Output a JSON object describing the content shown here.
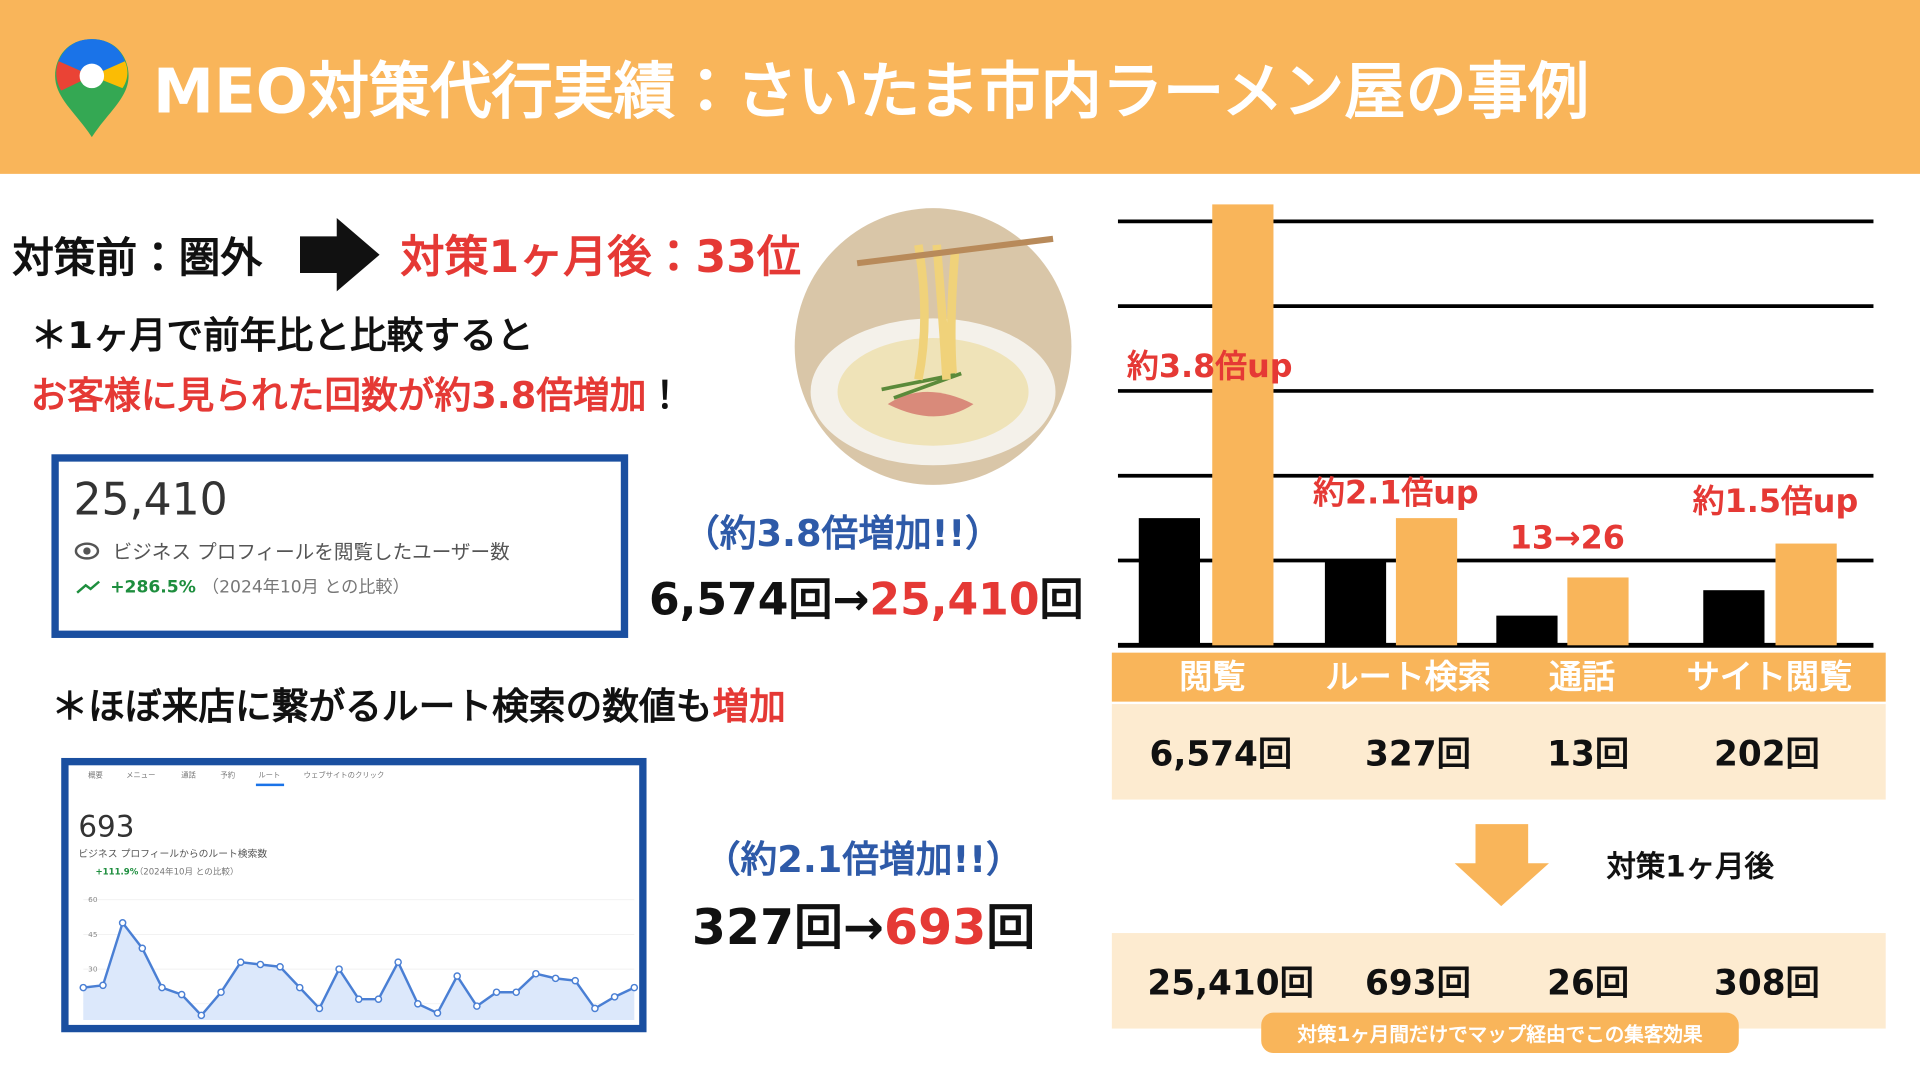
{
  "header": {
    "title": "MEO対策代行実績：さいたま市内ラーメン屋の事例"
  },
  "rank": {
    "before": "対策前：圏外",
    "after": "対策1ヶ月後：33位"
  },
  "lead": "＊1ヶ月で前年比と比較すると",
  "lead_highlight": [
    "お客様に見られた回数が約3.8倍増加",
    "！"
  ],
  "card1": {
    "value": "25,410",
    "label": "ビジネス プロフィールを閲覧したユーザー数",
    "change": "+286.5%",
    "compare": "（2024年10月 との比較）"
  },
  "result1": {
    "note": "（約3.8倍増加!!）",
    "before": "6,574回→",
    "after": "25,410",
    "unit": "回"
  },
  "route_lead": [
    "＊ほぼ来店に繋がるルート検索の数値も",
    "増加"
  ],
  "card2": {
    "tabs": [
      "概要",
      "メニュー",
      "通話",
      "予約",
      "ルート",
      "ウェブサイトのクリック"
    ],
    "value": "693",
    "label": "ビジネス プロフィールからのルート検索数",
    "change": "+111.9%",
    "compare": "（2024年10月 との比較）"
  },
  "result2": {
    "note": "（約2.1倍増加!!）",
    "before": "327回→",
    "after": "693",
    "unit": "回"
  },
  "chart_data": [
    {
      "type": "bar",
      "categories": [
        "閲覧",
        "ルート検索",
        "通話",
        "サイト閲覧"
      ],
      "series": [
        {
          "color": "#000000",
          "values": [
            1.5,
            1.0,
            0.35,
            0.65
          ]
        },
        {
          "color": "#f9b55a",
          "values": [
            5.2,
            1.5,
            0.8,
            1.2
          ]
        }
      ],
      "ylim": [
        0,
        5.3
      ],
      "yticks": [
        0,
        1,
        2,
        3,
        4,
        5
      ],
      "grid": true,
      "annotations": [
        "約3.8倍up",
        "約2.1倍up",
        "13→26",
        "約1.5倍up"
      ]
    },
    {
      "type": "line",
      "values": [
        22,
        23,
        50,
        39,
        22,
        19,
        10,
        20,
        33,
        32,
        31,
        22,
        13,
        30,
        17,
        17,
        33,
        15,
        11,
        27,
        14,
        20,
        20,
        28,
        26,
        25,
        13,
        18,
        22
      ],
      "color": "#4a7fd4",
      "ylim": [
        8,
        62
      ],
      "yticks": [
        15,
        30,
        45,
        60
      ]
    }
  ],
  "table": {
    "before": [
      "6,574回",
      "327回",
      "13回",
      "202回"
    ],
    "after_label": "対策1ヶ月後",
    "after": [
      "25,410回",
      "693回",
      "26回",
      "308回"
    ],
    "caption": "対策1ヶ月間だけでマップ経由でこの集客効果"
  }
}
